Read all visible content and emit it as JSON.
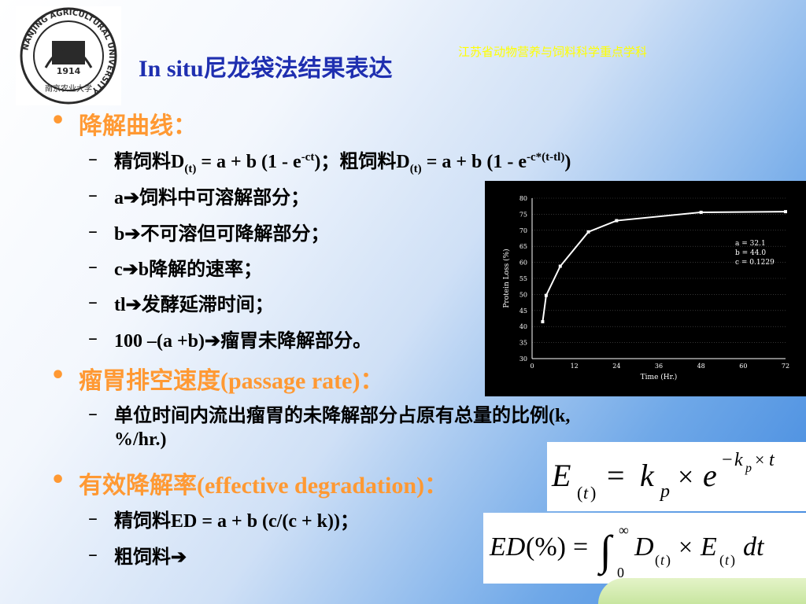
{
  "header": {
    "tag": "江苏省动物营养与饲料科学重点学科",
    "title": "In situ尼龙袋法结果表达"
  },
  "logo": {
    "ring_text": "NANJING AGRICULTURAL UNIVERSITY",
    "year": "1914",
    "chinese": "南京农业大学"
  },
  "bullets": [
    {
      "label": "降解曲线："
    },
    {
      "label": "瘤胃排空速度(passage rate)："
    },
    {
      "label": "有效降解率(effective degradation)："
    }
  ],
  "items": {
    "concentrate_prefix": "精饲料",
    "concentrate_formula_a": "D",
    "concentrate_formula_b": "(t)",
    "concentrate_formula_c": " = a + b (1 - e",
    "concentrate_formula_d": "-ct",
    "concentrate_formula_e": ")；",
    "roughage_prefix": "粗饲料",
    "roughage_formula_a": "D",
    "roughage_formula_b": "(t)",
    "roughage_formula_c": " = a + b (1 - e",
    "roughage_formula_d": "-c*(t-tl)",
    "roughage_formula_e": ")",
    "a_label": "a",
    "a_text": "饲料中可溶解部分；",
    "b_label": "b",
    "b_text": "不可溶但可降解部分；",
    "c_label": "c",
    "c_text": "b降解的速率；",
    "tl_label": "tl",
    "tl_text": "发酵延滞时间；",
    "rest_label": "100 –(a +b)",
    "rest_text": "瘤胃未降解部分。",
    "passage_line1": "单位时间内流出瘤胃的未降解部分占原有总量的比例(k,",
    "passage_line2": "%/hr.)",
    "ed_line": "精饲料ED = a + b (c/(c + k))；",
    "roughage_ed": "粗饲料"
  },
  "formulas": {
    "f1": "E(t) = kp × e^(−kp×t)",
    "f2": "ED(%) = ∫0∞ D(t) × E(t) dt"
  },
  "chart_data": {
    "type": "line",
    "x": [
      3,
      4,
      8,
      16,
      24,
      48,
      72
    ],
    "y": [
      41.5,
      49.7,
      58.8,
      69.5,
      73.0,
      75.6,
      75.8
    ],
    "xlabel": "Time (Hr.)",
    "ylabel": "Protein Loss (%)",
    "xticks": [
      0,
      12,
      24,
      36,
      48,
      60,
      72
    ],
    "yticks": [
      30,
      35,
      40,
      45,
      50,
      55,
      60,
      65,
      70,
      75,
      80
    ],
    "xlim": [
      0,
      72
    ],
    "ylim": [
      30,
      80
    ],
    "grid": true,
    "annotations": [
      "a = 32.1",
      "b = 44.0",
      "c = 0.1229"
    ],
    "colors": {
      "line": "#ffffff",
      "background": "#000000",
      "grid": "#555555"
    }
  }
}
